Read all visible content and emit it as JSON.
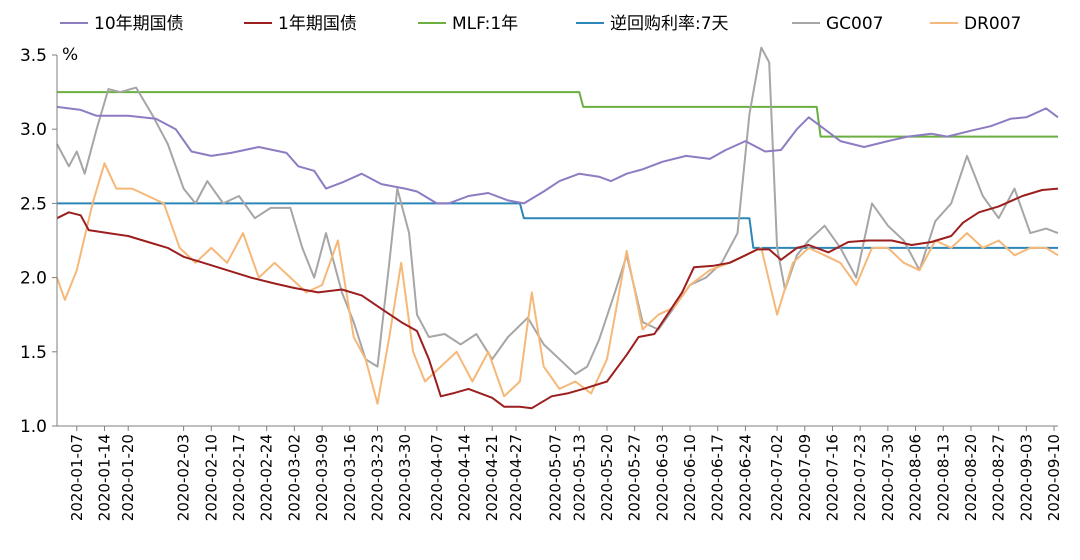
{
  "chart_data": {
    "type": "line",
    "y_unit": "%",
    "ylim": [
      1.0,
      3.5
    ],
    "yticks": [
      "1.0",
      "1.5",
      "2.0",
      "2.5",
      "3.0",
      "3.5"
    ],
    "x_range": [
      "2020-01-02",
      "2020-09-11"
    ],
    "xticks": [
      "2020-01-07",
      "2020-01-14",
      "2020-01-20",
      "2020-02-03",
      "2020-02-10",
      "2020-02-17",
      "2020-02-24",
      "2020-03-02",
      "2020-03-09",
      "2020-03-16",
      "2020-03-23",
      "2020-03-30",
      "2020-04-07",
      "2020-04-14",
      "2020-04-21",
      "2020-04-27",
      "2020-05-07",
      "2020-05-13",
      "2020-05-20",
      "2020-05-27",
      "2020-06-03",
      "2020-06-10",
      "2020-06-17",
      "2020-06-24",
      "2020-07-02",
      "2020-07-09",
      "2020-07-16",
      "2020-07-23",
      "2020-07-30",
      "2020-08-06",
      "2020-08-13",
      "2020-08-20",
      "2020-08-27",
      "2020-09-03",
      "2020-09-10"
    ],
    "grid": false,
    "legend_position": "top",
    "series": [
      {
        "name": "10年期国债",
        "color": "#8e7cc3",
        "points": [
          [
            "2020-01-02",
            3.15
          ],
          [
            "2020-01-08",
            3.13
          ],
          [
            "2020-01-12",
            3.09
          ],
          [
            "2020-01-20",
            3.09
          ],
          [
            "2020-01-27",
            3.07
          ],
          [
            "2020-02-01",
            3.0
          ],
          [
            "2020-02-05",
            2.85
          ],
          [
            "2020-02-10",
            2.82
          ],
          [
            "2020-02-15",
            2.84
          ],
          [
            "2020-02-22",
            2.88
          ],
          [
            "2020-02-29",
            2.84
          ],
          [
            "2020-03-03",
            2.75
          ],
          [
            "2020-03-07",
            2.72
          ],
          [
            "2020-03-10",
            2.6
          ],
          [
            "2020-03-14",
            2.64
          ],
          [
            "2020-03-19",
            2.7
          ],
          [
            "2020-03-24",
            2.63
          ],
          [
            "2020-03-30",
            2.6
          ],
          [
            "2020-04-02",
            2.58
          ],
          [
            "2020-04-07",
            2.5
          ],
          [
            "2020-04-10",
            2.5
          ],
          [
            "2020-04-15",
            2.55
          ],
          [
            "2020-04-20",
            2.57
          ],
          [
            "2020-04-25",
            2.52
          ],
          [
            "2020-04-29",
            2.5
          ],
          [
            "2020-05-04",
            2.58
          ],
          [
            "2020-05-08",
            2.65
          ],
          [
            "2020-05-13",
            2.7
          ],
          [
            "2020-05-18",
            2.68
          ],
          [
            "2020-05-21",
            2.65
          ],
          [
            "2020-05-25",
            2.7
          ],
          [
            "2020-05-29",
            2.73
          ],
          [
            "2020-06-03",
            2.78
          ],
          [
            "2020-06-09",
            2.82
          ],
          [
            "2020-06-15",
            2.8
          ],
          [
            "2020-06-19",
            2.86
          ],
          [
            "2020-06-24",
            2.92
          ],
          [
            "2020-06-29",
            2.85
          ],
          [
            "2020-07-03",
            2.86
          ],
          [
            "2020-07-07",
            3.0
          ],
          [
            "2020-07-10",
            3.08
          ],
          [
            "2020-07-13",
            3.02
          ],
          [
            "2020-07-18",
            2.92
          ],
          [
            "2020-07-24",
            2.88
          ],
          [
            "2020-07-30",
            2.92
          ],
          [
            "2020-08-04",
            2.95
          ],
          [
            "2020-08-10",
            2.97
          ],
          [
            "2020-08-14",
            2.95
          ],
          [
            "2020-08-20",
            2.99
          ],
          [
            "2020-08-25",
            3.02
          ],
          [
            "2020-08-30",
            3.07
          ],
          [
            "2020-09-03",
            3.08
          ],
          [
            "2020-09-08",
            3.14
          ],
          [
            "2020-09-11",
            3.08
          ]
        ]
      },
      {
        "name": "1年期国债",
        "color": "#9c1f1f",
        "points": [
          [
            "2020-01-02",
            2.4
          ],
          [
            "2020-01-05",
            2.44
          ],
          [
            "2020-01-08",
            2.42
          ],
          [
            "2020-01-10",
            2.32
          ],
          [
            "2020-01-15",
            2.3
          ],
          [
            "2020-01-20",
            2.28
          ],
          [
            "2020-01-25",
            2.24
          ],
          [
            "2020-01-30",
            2.2
          ],
          [
            "2020-02-03",
            2.14
          ],
          [
            "2020-02-08",
            2.1
          ],
          [
            "2020-02-14",
            2.05
          ],
          [
            "2020-02-20",
            2.0
          ],
          [
            "2020-02-26",
            1.96
          ],
          [
            "2020-03-02",
            1.93
          ],
          [
            "2020-03-08",
            1.9
          ],
          [
            "2020-03-14",
            1.92
          ],
          [
            "2020-03-19",
            1.88
          ],
          [
            "2020-03-24",
            1.79
          ],
          [
            "2020-03-29",
            1.7
          ],
          [
            "2020-04-02",
            1.64
          ],
          [
            "2020-04-05",
            1.45
          ],
          [
            "2020-04-08",
            1.2
          ],
          [
            "2020-04-11",
            1.22
          ],
          [
            "2020-04-15",
            1.25
          ],
          [
            "2020-04-21",
            1.19
          ],
          [
            "2020-04-24",
            1.13
          ],
          [
            "2020-04-28",
            1.13
          ],
          [
            "2020-05-01",
            1.12
          ],
          [
            "2020-05-06",
            1.2
          ],
          [
            "2020-05-10",
            1.22
          ],
          [
            "2020-05-14",
            1.25
          ],
          [
            "2020-05-20",
            1.3
          ],
          [
            "2020-05-25",
            1.48
          ],
          [
            "2020-05-28",
            1.6
          ],
          [
            "2020-06-01",
            1.62
          ],
          [
            "2020-06-05",
            1.78
          ],
          [
            "2020-06-08",
            1.9
          ],
          [
            "2020-06-11",
            2.07
          ],
          [
            "2020-06-16",
            2.08
          ],
          [
            "2020-06-20",
            2.1
          ],
          [
            "2020-06-24",
            2.15
          ],
          [
            "2020-06-27",
            2.19
          ],
          [
            "2020-06-30",
            2.19
          ],
          [
            "2020-07-03",
            2.12
          ],
          [
            "2020-07-07",
            2.2
          ],
          [
            "2020-07-10",
            2.22
          ],
          [
            "2020-07-15",
            2.17
          ],
          [
            "2020-07-20",
            2.24
          ],
          [
            "2020-07-25",
            2.25
          ],
          [
            "2020-07-31",
            2.25
          ],
          [
            "2020-08-05",
            2.22
          ],
          [
            "2020-08-10",
            2.24
          ],
          [
            "2020-08-15",
            2.28
          ],
          [
            "2020-08-18",
            2.37
          ],
          [
            "2020-08-22",
            2.44
          ],
          [
            "2020-08-27",
            2.48
          ],
          [
            "2020-09-02",
            2.55
          ],
          [
            "2020-09-07",
            2.59
          ],
          [
            "2020-09-11",
            2.6
          ]
        ]
      },
      {
        "name": "MLF:1年",
        "color": "#6aaf3f",
        "points": [
          [
            "2020-01-02",
            3.25
          ],
          [
            "2020-02-17",
            3.25
          ],
          [
            "2020-04-15",
            3.25
          ],
          [
            "2020-05-13",
            3.25
          ],
          [
            "2020-05-14",
            3.15
          ],
          [
            "2020-07-12",
            3.15
          ],
          [
            "2020-07-13",
            2.95
          ],
          [
            "2020-09-11",
            2.95
          ]
        ]
      },
      {
        "name": "逆回购利率:7天",
        "color": "#2c86b8",
        "points": [
          [
            "2020-01-02",
            2.5
          ],
          [
            "2020-04-28",
            2.5
          ],
          [
            "2020-04-29",
            2.4
          ],
          [
            "2020-06-25",
            2.4
          ],
          [
            "2020-06-26",
            2.2
          ],
          [
            "2020-09-11",
            2.2
          ]
        ]
      },
      {
        "name": "GC007",
        "color": "#a6a6a6",
        "points": [
          [
            "2020-01-02",
            2.9
          ],
          [
            "2020-01-05",
            2.75
          ],
          [
            "2020-01-07",
            2.85
          ],
          [
            "2020-01-09",
            2.7
          ],
          [
            "2020-01-12",
            3.0
          ],
          [
            "2020-01-15",
            3.27
          ],
          [
            "2020-01-18",
            3.25
          ],
          [
            "2020-01-22",
            3.28
          ],
          [
            "2020-01-26",
            3.1
          ],
          [
            "2020-01-30",
            2.9
          ],
          [
            "2020-02-03",
            2.6
          ],
          [
            "2020-02-06",
            2.5
          ],
          [
            "2020-02-09",
            2.65
          ],
          [
            "2020-02-13",
            2.5
          ],
          [
            "2020-02-17",
            2.55
          ],
          [
            "2020-02-21",
            2.4
          ],
          [
            "2020-02-25",
            2.47
          ],
          [
            "2020-03-01",
            2.47
          ],
          [
            "2020-03-04",
            2.2
          ],
          [
            "2020-03-07",
            2.0
          ],
          [
            "2020-03-10",
            2.3
          ],
          [
            "2020-03-14",
            1.9
          ],
          [
            "2020-03-17",
            1.7
          ],
          [
            "2020-03-20",
            1.45
          ],
          [
            "2020-03-23",
            1.4
          ],
          [
            "2020-03-26",
            2.1
          ],
          [
            "2020-03-28",
            2.6
          ],
          [
            "2020-03-31",
            2.3
          ],
          [
            "2020-04-02",
            1.75
          ],
          [
            "2020-04-05",
            1.6
          ],
          [
            "2020-04-09",
            1.62
          ],
          [
            "2020-04-13",
            1.55
          ],
          [
            "2020-04-17",
            1.62
          ],
          [
            "2020-04-21",
            1.45
          ],
          [
            "2020-04-25",
            1.6
          ],
          [
            "2020-04-30",
            1.73
          ],
          [
            "2020-05-04",
            1.55
          ],
          [
            "2020-05-08",
            1.45
          ],
          [
            "2020-05-12",
            1.35
          ],
          [
            "2020-05-15",
            1.4
          ],
          [
            "2020-05-18",
            1.58
          ],
          [
            "2020-05-22",
            1.9
          ],
          [
            "2020-05-25",
            2.15
          ],
          [
            "2020-05-29",
            1.7
          ],
          [
            "2020-06-02",
            1.65
          ],
          [
            "2020-06-06",
            1.8
          ],
          [
            "2020-06-10",
            1.95
          ],
          [
            "2020-06-14",
            2.0
          ],
          [
            "2020-06-18",
            2.1
          ],
          [
            "2020-06-22",
            2.3
          ],
          [
            "2020-06-25",
            3.1
          ],
          [
            "2020-06-28",
            3.55
          ],
          [
            "2020-06-30",
            3.45
          ],
          [
            "2020-07-02",
            2.2
          ],
          [
            "2020-07-04",
            1.92
          ],
          [
            "2020-07-07",
            2.15
          ],
          [
            "2020-07-10",
            2.25
          ],
          [
            "2020-07-14",
            2.35
          ],
          [
            "2020-07-18",
            2.2
          ],
          [
            "2020-07-22",
            2.0
          ],
          [
            "2020-07-26",
            2.5
          ],
          [
            "2020-07-30",
            2.35
          ],
          [
            "2020-08-03",
            2.25
          ],
          [
            "2020-08-07",
            2.05
          ],
          [
            "2020-08-11",
            2.38
          ],
          [
            "2020-08-15",
            2.5
          ],
          [
            "2020-08-19",
            2.82
          ],
          [
            "2020-08-23",
            2.55
          ],
          [
            "2020-08-27",
            2.4
          ],
          [
            "2020-08-31",
            2.6
          ],
          [
            "2020-09-04",
            2.3
          ],
          [
            "2020-09-08",
            2.33
          ],
          [
            "2020-09-11",
            2.3
          ]
        ]
      },
      {
        "name": "DR007",
        "color": "#f6b878",
        "points": [
          [
            "2020-01-02",
            2.0
          ],
          [
            "2020-01-04",
            1.85
          ],
          [
            "2020-01-07",
            2.05
          ],
          [
            "2020-01-11",
            2.5
          ],
          [
            "2020-01-14",
            2.77
          ],
          [
            "2020-01-17",
            2.6
          ],
          [
            "2020-01-21",
            2.6
          ],
          [
            "2020-01-25",
            2.55
          ],
          [
            "2020-01-29",
            2.5
          ],
          [
            "2020-02-02",
            2.2
          ],
          [
            "2020-02-06",
            2.1
          ],
          [
            "2020-02-10",
            2.2
          ],
          [
            "2020-02-14",
            2.1
          ],
          [
            "2020-02-18",
            2.3
          ],
          [
            "2020-02-22",
            2.0
          ],
          [
            "2020-02-26",
            2.1
          ],
          [
            "2020-03-01",
            2.0
          ],
          [
            "2020-03-05",
            1.9
          ],
          [
            "2020-03-09",
            1.95
          ],
          [
            "2020-03-13",
            2.25
          ],
          [
            "2020-03-17",
            1.6
          ],
          [
            "2020-03-20",
            1.45
          ],
          [
            "2020-03-23",
            1.15
          ],
          [
            "2020-03-26",
            1.6
          ],
          [
            "2020-03-29",
            2.1
          ],
          [
            "2020-04-01",
            1.5
          ],
          [
            "2020-04-04",
            1.3
          ],
          [
            "2020-04-08",
            1.4
          ],
          [
            "2020-04-12",
            1.5
          ],
          [
            "2020-04-16",
            1.3
          ],
          [
            "2020-04-20",
            1.5
          ],
          [
            "2020-04-24",
            1.2
          ],
          [
            "2020-04-28",
            1.3
          ],
          [
            "2020-05-01",
            1.9
          ],
          [
            "2020-05-04",
            1.4
          ],
          [
            "2020-05-08",
            1.25
          ],
          [
            "2020-05-12",
            1.3
          ],
          [
            "2020-05-16",
            1.22
          ],
          [
            "2020-05-20",
            1.45
          ],
          [
            "2020-05-25",
            2.18
          ],
          [
            "2020-05-29",
            1.65
          ],
          [
            "2020-06-02",
            1.75
          ],
          [
            "2020-06-06",
            1.8
          ],
          [
            "2020-06-10",
            1.95
          ],
          [
            "2020-06-15",
            2.05
          ],
          [
            "2020-06-20",
            2.1
          ],
          [
            "2020-06-24",
            2.15
          ],
          [
            "2020-06-28",
            2.2
          ],
          [
            "2020-07-02",
            1.75
          ],
          [
            "2020-07-06",
            2.1
          ],
          [
            "2020-07-10",
            2.2
          ],
          [
            "2020-07-14",
            2.15
          ],
          [
            "2020-07-18",
            2.1
          ],
          [
            "2020-07-22",
            1.95
          ],
          [
            "2020-07-26",
            2.2
          ],
          [
            "2020-07-30",
            2.2
          ],
          [
            "2020-08-03",
            2.1
          ],
          [
            "2020-08-07",
            2.05
          ],
          [
            "2020-08-11",
            2.25
          ],
          [
            "2020-08-15",
            2.2
          ],
          [
            "2020-08-19",
            2.3
          ],
          [
            "2020-08-23",
            2.2
          ],
          [
            "2020-08-27",
            2.25
          ],
          [
            "2020-08-31",
            2.15
          ],
          [
            "2020-09-04",
            2.2
          ],
          [
            "2020-09-08",
            2.2
          ],
          [
            "2020-09-11",
            2.15
          ]
        ]
      }
    ]
  }
}
